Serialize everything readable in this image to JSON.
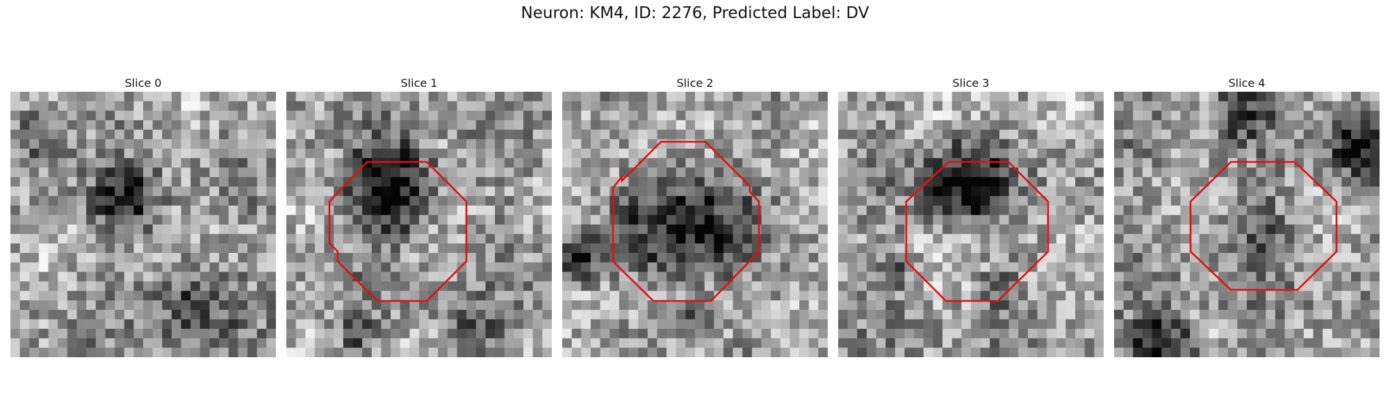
{
  "figure": {
    "title": "Neuron: KM4, ID: 2276, Predicted Label: DV"
  },
  "slices": [
    {
      "title": "Slice 0",
      "has_contour": false
    },
    {
      "title": "Slice 1",
      "has_contour": true
    },
    {
      "title": "Slice 2",
      "has_contour": true
    },
    {
      "title": "Slice 3",
      "has_contour": true
    },
    {
      "title": "Slice 4",
      "has_contour": true
    }
  ],
  "colors": {
    "contour": "#e01010"
  }
}
